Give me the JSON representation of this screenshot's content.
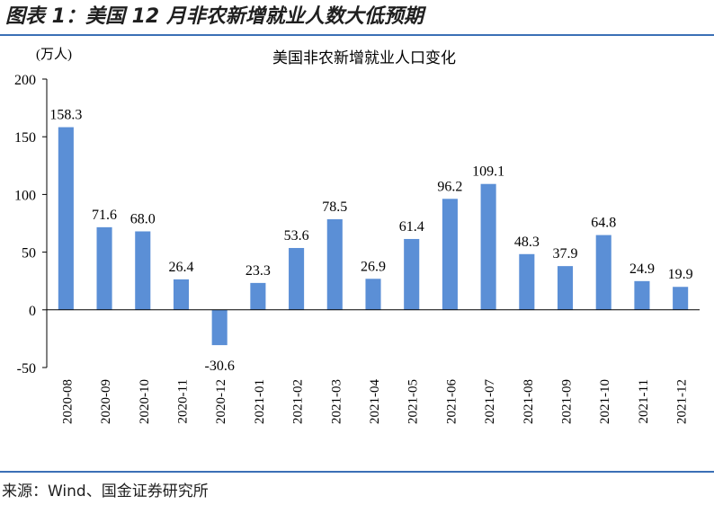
{
  "figure": {
    "title": "图表 1：美国 12 月非农新增就业人数大低预期",
    "source": "来源：Wind、国金证券研究所"
  },
  "chart_data": {
    "type": "bar",
    "title": "美国非农新增就业人口变化",
    "unit_label": "(万人)",
    "xlabel": "",
    "ylabel": "",
    "ylim": [
      -50,
      200
    ],
    "yticks": [
      -50,
      0,
      50,
      100,
      150,
      200
    ],
    "categories": [
      "2020-08",
      "2020-09",
      "2020-10",
      "2020-11",
      "2020-12",
      "2021-01",
      "2021-02",
      "2021-03",
      "2021-04",
      "2021-05",
      "2021-06",
      "2021-07",
      "2021-08",
      "2021-09",
      "2021-10",
      "2021-11",
      "2021-12"
    ],
    "values": [
      158.3,
      71.6,
      68.0,
      26.4,
      -30.6,
      23.3,
      53.6,
      78.5,
      26.9,
      61.4,
      96.2,
      109.1,
      48.3,
      37.9,
      64.8,
      24.9,
      19.9
    ],
    "value_labels": [
      "158.3",
      "71.6",
      "68.0",
      "26.4",
      "-30.6",
      "23.3",
      "53.6",
      "78.5",
      "26.9",
      "61.4",
      "96.2",
      "109.1",
      "48.3",
      "37.9",
      "64.8",
      "24.9",
      "19.9"
    ],
    "bar_color": "#5b8fd6",
    "grid": false
  }
}
